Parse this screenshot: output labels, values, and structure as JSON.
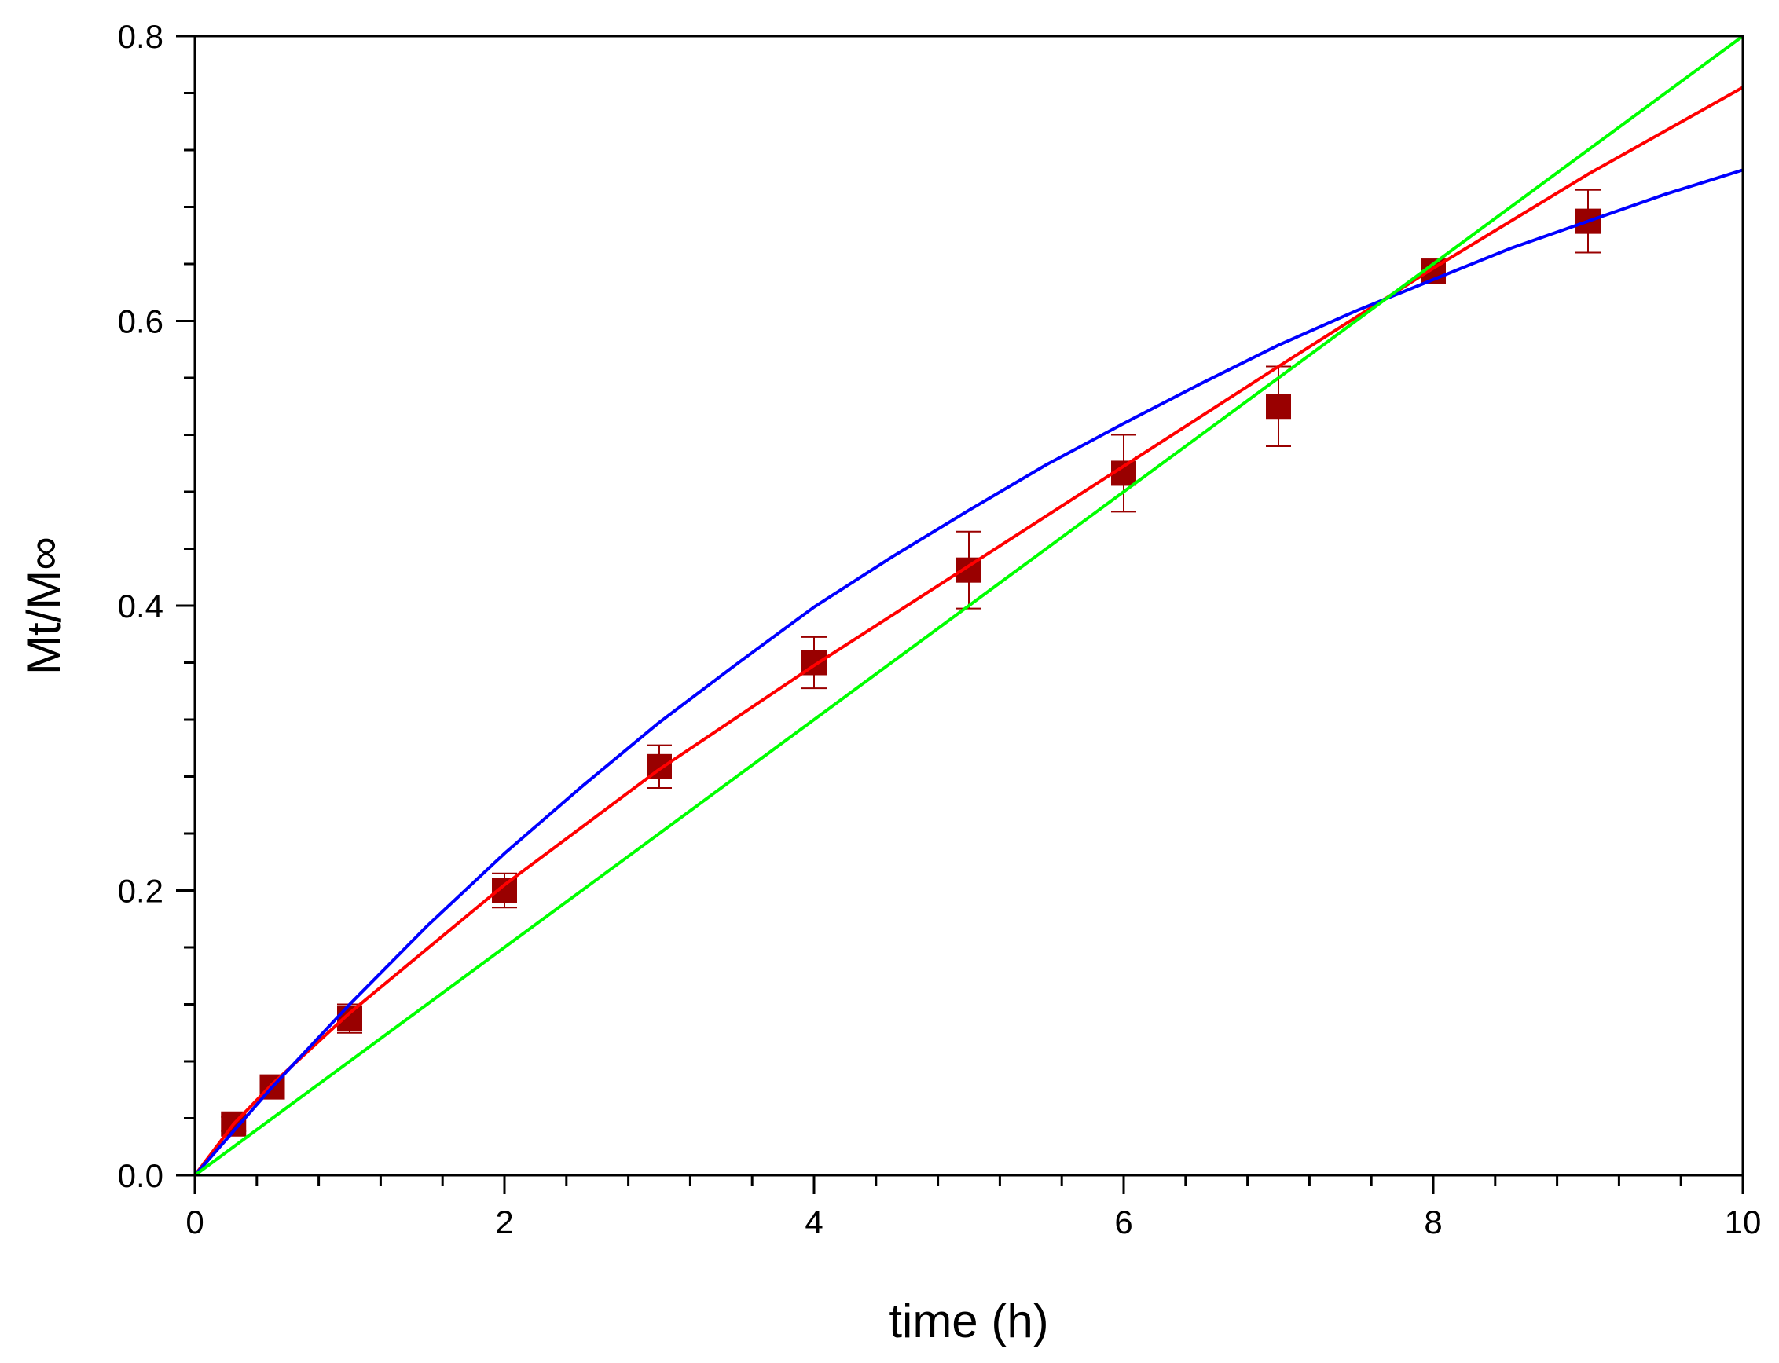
{
  "chart_data": {
    "type": "scatter",
    "title": "",
    "xlabel": "time (h)",
    "ylabel": "Mt/M∞",
    "xlim": [
      0,
      10
    ],
    "ylim": [
      0,
      0.8
    ],
    "x_major_ticks": [
      0,
      2,
      4,
      6,
      8,
      10
    ],
    "x_minor_step": 0.4,
    "y_major_ticks": [
      0.0,
      0.2,
      0.4,
      0.6,
      0.8
    ],
    "y_minor_step": 0.04,
    "x_tick_labels": [
      "0",
      "2",
      "4",
      "6",
      "8",
      "10"
    ],
    "y_tick_labels": [
      "0.0",
      "0.2",
      "0.4",
      "0.6",
      "0.8"
    ],
    "grid": false,
    "legend": "none",
    "series": [
      {
        "kind": "points",
        "color": "#990000",
        "marker": "square",
        "x": [
          0.25,
          0.5,
          1,
          2,
          3,
          4,
          5,
          6,
          7,
          8,
          9
        ],
        "y": [
          0.036,
          0.062,
          0.11,
          0.2,
          0.287,
          0.36,
          0.425,
          0.493,
          0.54,
          0.635,
          0.67
        ],
        "error": [
          0.005,
          0.005,
          0.01,
          0.012,
          0.015,
          0.018,
          0.027,
          0.027,
          0.028,
          0.005,
          0.022
        ]
      },
      {
        "kind": "line",
        "color": "#ff0000",
        "x": [
          0,
          0.25,
          0.5,
          1,
          2,
          3,
          4,
          5,
          6,
          7,
          8,
          9,
          10
        ],
        "y": [
          0,
          0.036,
          0.064,
          0.114,
          0.204,
          0.285,
          0.358,
          0.428,
          0.498,
          0.568,
          0.637,
          0.703,
          0.764
        ]
      },
      {
        "kind": "line",
        "color": "#0000ff",
        "x": [
          0,
          0.25,
          0.5,
          1,
          1.5,
          2,
          2.5,
          3,
          3.5,
          4,
          4.5,
          5,
          5.5,
          6,
          6.5,
          7,
          7.5,
          8,
          8.5,
          9,
          9.5,
          10
        ],
        "y": [
          0,
          0.031,
          0.062,
          0.12,
          0.175,
          0.226,
          0.273,
          0.318,
          0.359,
          0.399,
          0.434,
          0.467,
          0.499,
          0.528,
          0.556,
          0.583,
          0.607,
          0.629,
          0.651,
          0.67,
          0.689,
          0.706
        ]
      },
      {
        "kind": "line",
        "color": "#00ff00",
        "x": [
          0,
          10
        ],
        "y": [
          0,
          0.8
        ]
      }
    ]
  }
}
